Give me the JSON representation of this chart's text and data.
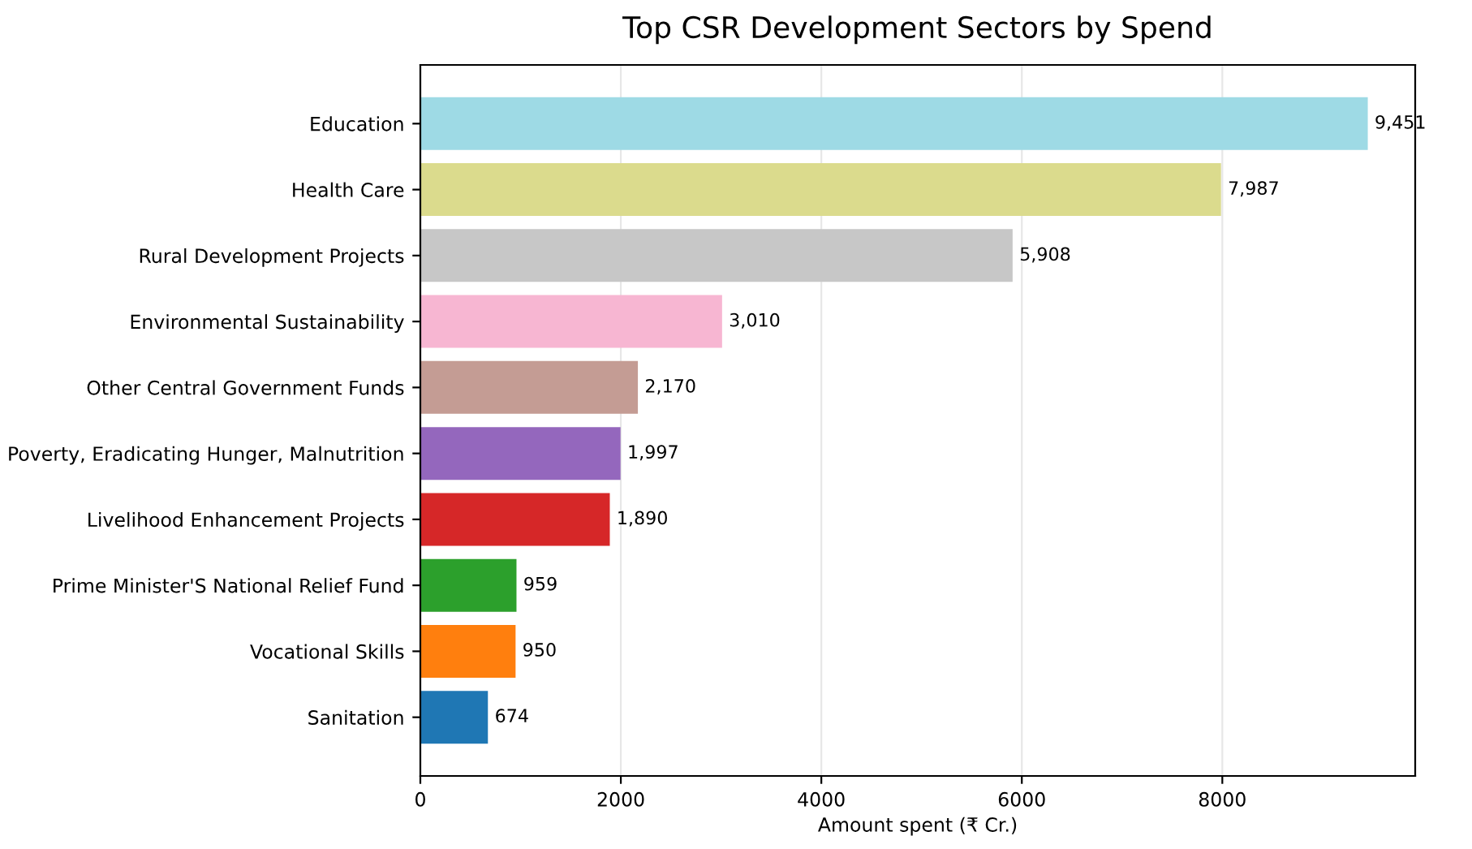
{
  "chart_data": {
    "type": "bar",
    "orientation": "horizontal",
    "title": "Top CSR Development Sectors by Spend",
    "xlabel": "Amount spent (₹ Cr.)",
    "categories": [
      "Education",
      "Health Care",
      "Rural Development Projects",
      "Environmental Sustainability",
      "Other Central Government Funds",
      "Poverty, Eradicating Hunger, Malnutrition",
      "Livelihood Enhancement Projects",
      "Prime Minister'S National Relief Fund",
      "Vocational Skills",
      "Sanitation"
    ],
    "values": [
      9451,
      7987,
      5908,
      3010,
      2170,
      1997,
      1890,
      959,
      950,
      674
    ],
    "value_labels": [
      "9,451",
      "7,987",
      "5,908",
      "3,010",
      "2,170",
      "1,997",
      "1,890",
      "959",
      "950",
      "674"
    ],
    "colors": [
      "#9edae5",
      "#dbdb8d",
      "#c7c7c7",
      "#f7b6d2",
      "#c49c94",
      "#9467bd",
      "#d62728",
      "#2ca02c",
      "#ff7f0e",
      "#1f77b4"
    ],
    "xlim": [
      0,
      9924
    ],
    "xticks": [
      0,
      2000,
      4000,
      6000,
      8000
    ],
    "grid": "x",
    "legend": false
  }
}
